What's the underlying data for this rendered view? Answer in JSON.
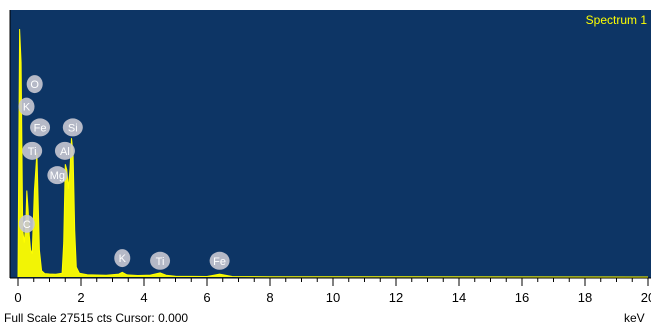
{
  "chart_data": {
    "type": "line",
    "title": "Spectrum 1",
    "xlabel": "keV",
    "xlim": [
      0,
      20
    ],
    "x_ticks": [
      "0",
      "2",
      "4",
      "6",
      "8",
      "10",
      "12",
      "14",
      "16",
      "18",
      "20"
    ],
    "full_scale_cts": 27515,
    "series": [
      {
        "x": [
          0.0,
          0.05,
          0.1,
          0.15,
          0.2,
          0.25,
          0.28,
          0.32,
          0.36,
          0.4,
          0.45,
          0.52,
          0.6,
          0.68,
          0.75,
          0.85,
          1.0,
          1.2,
          1.4,
          1.45,
          1.5,
          1.55,
          1.6,
          1.65,
          1.7,
          1.75,
          1.8,
          1.85,
          1.95,
          2.2,
          2.8,
          3.2,
          3.31,
          3.45,
          3.8,
          4.2,
          4.51,
          4.7,
          5.0,
          5.5,
          6.0,
          6.4,
          6.8,
          8.0,
          12.0,
          16.0,
          20.0
        ],
        "y": [
          0,
          27515,
          23800,
          5200,
          3800,
          6200,
          9600,
          7500,
          4600,
          3000,
          2600,
          9600,
          13800,
          3000,
          700,
          380,
          330,
          300,
          420,
          3800,
          12500,
          11900,
          9800,
          12000,
          15400,
          13600,
          5200,
          1100,
          420,
          260,
          200,
          320,
          520,
          240,
          170,
          210,
          450,
          200,
          90,
          70,
          60,
          320,
          50,
          30,
          20,
          10,
          0
        ]
      }
    ],
    "peak_labels": [
      {
        "label": "O",
        "x": 0.53,
        "y": 21400
      },
      {
        "label": "K",
        "x": 0.27,
        "y": 18900
      },
      {
        "label": "Fe",
        "x": 0.7,
        "y": 16600
      },
      {
        "label": "Si",
        "x": 1.74,
        "y": 16600
      },
      {
        "label": "Ti",
        "x": 0.45,
        "y": 14000
      },
      {
        "label": "Al",
        "x": 1.49,
        "y": 14000
      },
      {
        "label": "Mg",
        "x": 1.25,
        "y": 11300
      },
      {
        "label": "C",
        "x": 0.28,
        "y": 5900
      },
      {
        "label": "K",
        "x": 3.31,
        "y": 2100
      },
      {
        "label": "Ti",
        "x": 4.51,
        "y": 1800
      },
      {
        "label": "Fe",
        "x": 6.4,
        "y": 1800
      }
    ],
    "grid": false,
    "colors": {
      "plot_bg": "#0d3565",
      "spectrum": "#ffff00",
      "marker": "#c8c8d2",
      "marker_text": "#ffffff"
    }
  },
  "status": {
    "text": "Full Scale 27515 cts Cursor: 0.000",
    "unit": "keV"
  }
}
